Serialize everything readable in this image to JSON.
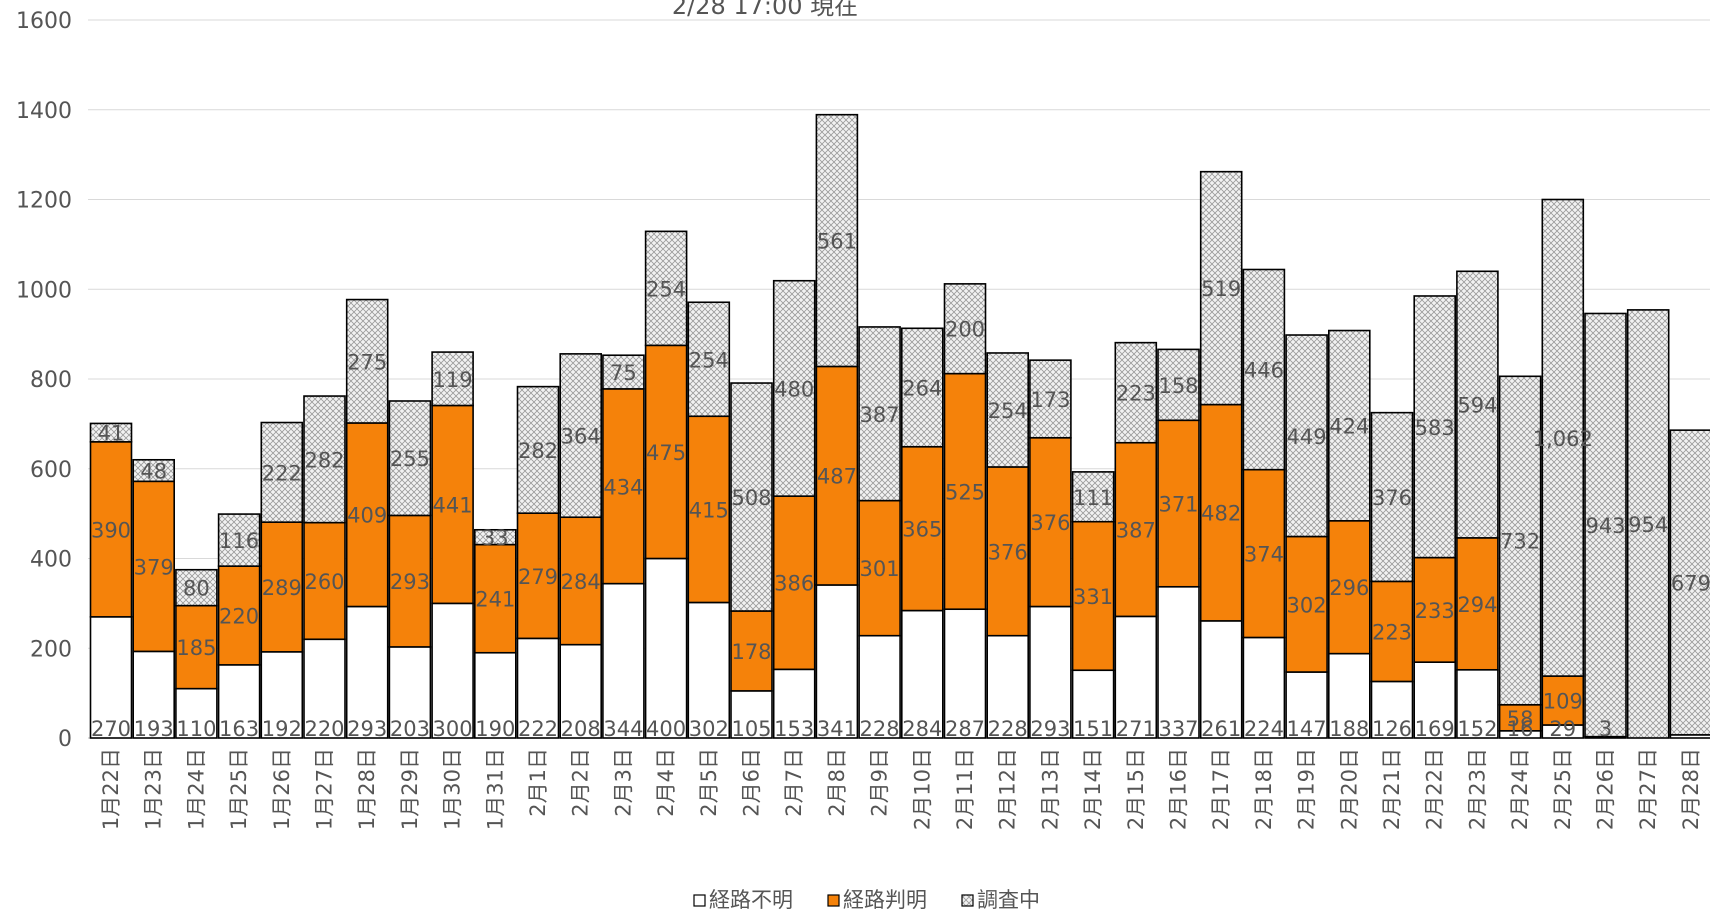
{
  "chart_data": {
    "type": "bar",
    "stacked": true,
    "title": "2/28  17:00 現在",
    "categories": [
      "1月22日",
      "1月23日",
      "1月24日",
      "1月25日",
      "1月26日",
      "1月27日",
      "1月28日",
      "1月29日",
      "1月30日",
      "1月31日",
      "2月1日",
      "2月2日",
      "2月3日",
      "2月4日",
      "2月5日",
      "2月6日",
      "2月7日",
      "2月8日",
      "2月9日",
      "2月10日",
      "2月11日",
      "2月12日",
      "2月13日",
      "2月14日",
      "2月15日",
      "2月16日",
      "2月17日",
      "2月18日",
      "2月19日",
      "2月20日",
      "2月21日",
      "2月22日",
      "2月23日",
      "2月24日",
      "2月25日",
      "2月26日",
      "2月27日",
      "2月28日"
    ],
    "series": [
      {
        "name": "経路不明",
        "color": "#ffffff",
        "values": [
          270,
          193,
          110,
          163,
          192,
          220,
          293,
          203,
          300,
          190,
          222,
          208,
          344,
          400,
          302,
          105,
          153,
          341,
          228,
          284,
          287,
          228,
          293,
          151,
          271,
          337,
          261,
          224,
          147,
          188,
          126,
          169,
          152,
          16,
          29,
          3,
          0,
          7
        ]
      },
      {
        "name": "経路判明",
        "color": "#f5820a",
        "values": [
          390,
          379,
          185,
          220,
          289,
          260,
          409,
          293,
          441,
          241,
          279,
          284,
          434,
          475,
          415,
          178,
          386,
          487,
          301,
          365,
          525,
          376,
          376,
          331,
          387,
          371,
          482,
          374,
          302,
          296,
          223,
          233,
          294,
          58,
          109,
          0,
          0,
          0
        ]
      },
      {
        "name": "調査中",
        "color": "#e6e6e6",
        "pattern": "crosshatch",
        "values": [
          41,
          48,
          80,
          116,
          222,
          282,
          275,
          255,
          119,
          33,
          282,
          364,
          75,
          254,
          254,
          508,
          480,
          561,
          387,
          264,
          200,
          254,
          173,
          111,
          223,
          158,
          519,
          446,
          449,
          424,
          376,
          583,
          594,
          732,
          1062,
          943,
          954,
          679
        ]
      }
    ],
    "value_labels": {
      "経路不明": [
        "270",
        "193",
        "110",
        "163",
        "192",
        "220",
        "293",
        "203",
        "300",
        "190",
        "222",
        "208",
        "344",
        "400",
        "302",
        "105",
        "153",
        "341",
        "228",
        "284",
        "287",
        "228",
        "293",
        "151",
        "271",
        "337",
        "261",
        "224",
        "147",
        "188",
        "126",
        "169",
        "152",
        "16",
        "29",
        "3",
        "",
        ""
      ],
      "経路判明": [
        "390",
        "379",
        "185",
        "220",
        "289",
        "260",
        "409",
        "293",
        "441",
        "241",
        "279",
        "284",
        "434",
        "475",
        "415",
        "178",
        "386",
        "487",
        "301",
        "365",
        "525",
        "376",
        "376",
        "331",
        "387",
        "371",
        "482",
        "374",
        "302",
        "296",
        "223",
        "233",
        "294",
        "58",
        "109",
        "",
        "",
        ""
      ],
      "調査中": [
        "41",
        "48",
        "80",
        "116",
        "222",
        "282",
        "275",
        "255",
        "119",
        "33",
        "282",
        "364",
        "75",
        "254",
        "254",
        "508",
        "480",
        "561",
        "387",
        "264",
        "200",
        "254",
        "173",
        "111",
        "223",
        "158",
        "519",
        "446",
        "449",
        "424",
        "376",
        "583",
        "594",
        "732",
        "1,062",
        "943",
        "954",
        "679"
      ]
    },
    "ylim": [
      0,
      1600
    ],
    "yticks": [
      "0",
      "200",
      "400",
      "600",
      "800",
      "1000",
      "1200",
      "1400",
      "1600"
    ],
    "grid": true,
    "legend_position": "bottom"
  }
}
